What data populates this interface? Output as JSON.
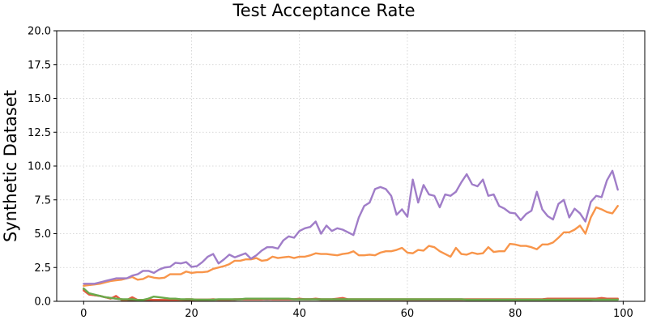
{
  "chart_data": {
    "type": "line",
    "title": "Test Acceptance Rate",
    "xlabel": "",
    "ylabel": "Synthetic Dataset",
    "xlim": [
      -5,
      104
    ],
    "ylim": [
      0,
      20
    ],
    "xticks": [
      0,
      20,
      40,
      60,
      80,
      100
    ],
    "yticks": [
      0.0,
      2.5,
      5.0,
      7.5,
      10.0,
      12.5,
      15.0,
      17.5,
      20.0
    ],
    "ytick_labels": [
      "0.0",
      "2.5",
      "5.0",
      "7.5",
      "10.0",
      "12.5",
      "15.0",
      "17.5",
      "20.0"
    ],
    "grid": true,
    "legend": "none",
    "series": [
      {
        "color": "#a07dc8",
        "x_start": 0,
        "values": [
          1.3,
          1.3,
          1.3,
          1.4,
          1.5,
          1.6,
          1.7,
          1.7,
          1.7,
          1.9,
          2.0,
          2.25,
          2.25,
          2.1,
          2.35,
          2.5,
          2.55,
          2.85,
          2.8,
          2.9,
          2.55,
          2.6,
          2.9,
          3.3,
          3.5,
          2.8,
          3.1,
          3.45,
          3.25,
          3.4,
          3.55,
          3.15,
          3.4,
          3.75,
          4.0,
          4.0,
          3.9,
          4.5,
          4.8,
          4.7,
          5.2,
          5.4,
          5.5,
          5.9,
          5.0,
          5.6,
          5.2,
          5.4,
          5.3,
          5.1,
          4.9,
          6.2,
          7.05,
          7.3,
          8.3,
          8.45,
          8.3,
          7.8,
          6.4,
          6.8,
          6.25,
          9.0,
          7.3,
          8.6,
          7.9,
          7.8,
          6.95,
          7.9,
          7.8,
          8.1,
          8.8,
          9.4,
          8.65,
          8.5,
          9.0,
          7.8,
          7.9,
          7.05,
          6.85,
          6.55,
          6.5,
          6.0,
          6.45,
          6.7,
          8.1,
          6.8,
          6.3,
          6.05,
          7.2,
          7.5,
          6.2,
          6.85,
          6.5,
          5.9,
          7.35,
          7.8,
          7.7,
          8.95,
          9.65,
          8.25
        ]
      },
      {
        "color": "#f8954a",
        "x_start": 0,
        "values": [
          1.15,
          1.2,
          1.25,
          1.3,
          1.4,
          1.5,
          1.55,
          1.6,
          1.7,
          1.8,
          1.6,
          1.65,
          1.85,
          1.75,
          1.7,
          1.75,
          2.0,
          2.0,
          2.0,
          2.2,
          2.1,
          2.15,
          2.15,
          2.2,
          2.4,
          2.5,
          2.6,
          2.75,
          3.0,
          3.0,
          3.1,
          3.1,
          3.2,
          3.0,
          3.05,
          3.3,
          3.2,
          3.25,
          3.3,
          3.2,
          3.3,
          3.3,
          3.4,
          3.55,
          3.5,
          3.5,
          3.45,
          3.4,
          3.5,
          3.55,
          3.7,
          3.4,
          3.4,
          3.45,
          3.4,
          3.6,
          3.7,
          3.7,
          3.8,
          3.95,
          3.6,
          3.55,
          3.8,
          3.75,
          4.1,
          4.0,
          3.7,
          3.5,
          3.3,
          3.95,
          3.5,
          3.45,
          3.6,
          3.5,
          3.55,
          4.0,
          3.65,
          3.7,
          3.7,
          4.25,
          4.2,
          4.1,
          4.1,
          4.0,
          3.85,
          4.2,
          4.2,
          4.35,
          4.7,
          5.1,
          5.1,
          5.3,
          5.6,
          5.0,
          6.2,
          6.95,
          6.8,
          6.6,
          6.5,
          7.05
        ]
      },
      {
        "color": "#6aaa4a",
        "x_start": 0,
        "values": [
          0.95,
          0.6,
          0.5,
          0.4,
          0.3,
          0.25,
          0.2,
          0.15,
          0.15,
          0.15,
          0.1,
          0.1,
          0.2,
          0.35,
          0.3,
          0.25,
          0.2,
          0.2,
          0.15,
          0.15,
          0.15,
          0.12,
          0.12,
          0.12,
          0.12,
          0.15,
          0.15,
          0.15,
          0.15,
          0.15,
          0.2,
          0.2,
          0.2,
          0.2,
          0.2,
          0.2,
          0.2,
          0.2,
          0.2,
          0.15,
          0.15,
          0.15,
          0.15,
          0.15,
          0.15,
          0.15,
          0.15,
          0.15,
          0.15,
          0.15,
          0.15,
          0.15,
          0.15,
          0.15,
          0.15,
          0.15,
          0.15,
          0.15,
          0.15,
          0.15,
          0.15,
          0.15,
          0.15,
          0.15,
          0.15,
          0.15,
          0.15,
          0.15,
          0.15,
          0.15,
          0.15,
          0.12,
          0.12,
          0.12,
          0.12,
          0.12,
          0.12,
          0.12,
          0.12,
          0.12,
          0.12,
          0.12,
          0.12,
          0.12,
          0.12,
          0.12,
          0.12,
          0.12,
          0.12,
          0.12,
          0.12,
          0.12,
          0.12,
          0.12,
          0.12,
          0.12,
          0.12,
          0.12,
          0.12,
          0.12
        ]
      },
      {
        "color": "#e35a40",
        "x_start": 0,
        "values": [
          0.8,
          0.5,
          0.45,
          0.4,
          0.3,
          0.2,
          0.4,
          0.1,
          0.1,
          0.3,
          0.1,
          0.1,
          0.15,
          0.1,
          0.1,
          0.1,
          0.1,
          0.1,
          0.1,
          0.15,
          0.15,
          0.12,
          0.12,
          0.12,
          0.15,
          0.12,
          0.12,
          0.12,
          0.15,
          0.15,
          0.15,
          0.15,
          0.15,
          0.15,
          0.2,
          0.15,
          0.15,
          0.15,
          0.15,
          0.15,
          0.2,
          0.15,
          0.15,
          0.2,
          0.15,
          0.15,
          0.15,
          0.2,
          0.25,
          0.15,
          0.15,
          0.15,
          0.15,
          0.15,
          0.15,
          0.15,
          0.15,
          0.15,
          0.15,
          0.15,
          0.15,
          0.15,
          0.15,
          0.15,
          0.15,
          0.15,
          0.15,
          0.15,
          0.15,
          0.15,
          0.15,
          0.15,
          0.15,
          0.15,
          0.15,
          0.15,
          0.15,
          0.15,
          0.15,
          0.15,
          0.15,
          0.15,
          0.15,
          0.15,
          0.15,
          0.15,
          0.2,
          0.2,
          0.2,
          0.2,
          0.2,
          0.2,
          0.2,
          0.2,
          0.2,
          0.2,
          0.25,
          0.2,
          0.2,
          0.2
        ]
      },
      {
        "color": "#9b4f45",
        "x_start": 0,
        "values": [
          0.9,
          0.55,
          0.45,
          0.4,
          0.3,
          0.25,
          0.2,
          0.15,
          0.1,
          0.1,
          0.1,
          0.1,
          0.1,
          0.1,
          0.1,
          0.1,
          0.1,
          0.1,
          0.1,
          0.1,
          0.1,
          0.12,
          0.12,
          0.12,
          0.12,
          0.12,
          0.12,
          0.12,
          0.12,
          0.15,
          0.15,
          0.15,
          0.15,
          0.15,
          0.15,
          0.15,
          0.15,
          0.15,
          0.15,
          0.15,
          0.15,
          0.15,
          0.15,
          0.15,
          0.12,
          0.12,
          0.12,
          0.12,
          0.12,
          0.12,
          0.12,
          0.12,
          0.12,
          0.12,
          0.12,
          0.12,
          0.12,
          0.12,
          0.12,
          0.12,
          0.12,
          0.12,
          0.12,
          0.12,
          0.12,
          0.12,
          0.12,
          0.12,
          0.12,
          0.12,
          0.12,
          0.12,
          0.12,
          0.12,
          0.12,
          0.12,
          0.12,
          0.12,
          0.12,
          0.12,
          0.12,
          0.12,
          0.12,
          0.12,
          0.12,
          0.12,
          0.12,
          0.12,
          0.12,
          0.12,
          0.12,
          0.12,
          0.12,
          0.12,
          0.12,
          0.15,
          0.15,
          0.15,
          0.15,
          0.15
        ]
      }
    ]
  }
}
